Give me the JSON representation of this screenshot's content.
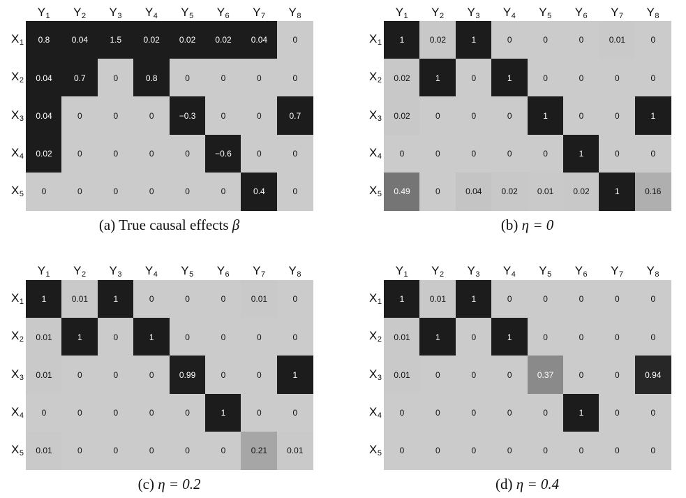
{
  "chart_data": [
    {
      "type": "heatmap",
      "panel_label": "(a)",
      "caption_text": "True causal effects",
      "caption_math": "β",
      "columns": [
        "Y1",
        "Y2",
        "Y3",
        "Y4",
        "Y5",
        "Y6",
        "Y7",
        "Y8"
      ],
      "rows": [
        "X1",
        "X2",
        "X3",
        "X4",
        "X5"
      ],
      "values": [
        [
          "0.8",
          "0.04",
          "1.5",
          "0.02",
          "0.02",
          "0.02",
          "0.04",
          "0"
        ],
        [
          "0.04",
          "0.7",
          "0",
          "0.8",
          "0",
          "0",
          "0",
          "0"
        ],
        [
          "0.04",
          "0",
          "0",
          "0",
          "−0.3",
          "0",
          "0",
          "0.7"
        ],
        [
          "0.02",
          "0",
          "0",
          "0",
          "0",
          "−0.6",
          "0",
          "0"
        ],
        [
          "0",
          "0",
          "0",
          "0",
          "0",
          "0",
          "0.4",
          "0"
        ]
      ],
      "fill": [
        [
          1,
          1,
          1,
          1,
          1,
          1,
          1,
          0
        ],
        [
          1,
          1,
          0,
          1,
          0,
          0,
          0,
          0
        ],
        [
          1,
          0,
          0,
          0,
          1,
          0,
          0,
          1
        ],
        [
          1,
          0,
          0,
          0,
          0,
          1,
          0,
          0
        ],
        [
          0,
          0,
          0,
          0,
          0,
          0,
          1,
          0
        ]
      ]
    },
    {
      "type": "heatmap",
      "panel_label": "(b)",
      "caption_text": "",
      "caption_math": "η = 0",
      "columns": [
        "Y1",
        "Y2",
        "Y3",
        "Y4",
        "Y5",
        "Y6",
        "Y7",
        "Y8"
      ],
      "rows": [
        "X1",
        "X2",
        "X3",
        "X4",
        "X5"
      ],
      "values": [
        [
          "1",
          "0.02",
          "1",
          "0",
          "0",
          "0",
          "0.01",
          "0"
        ],
        [
          "0.02",
          "1",
          "0",
          "1",
          "0",
          "0",
          "0",
          "0"
        ],
        [
          "0.02",
          "0",
          "0",
          "0",
          "1",
          "0",
          "0",
          "1"
        ],
        [
          "0",
          "0",
          "0",
          "0",
          "0",
          "1",
          "0",
          "0"
        ],
        [
          "0.49",
          "0",
          "0.04",
          "0.02",
          "0.01",
          "0.02",
          "1",
          "0.16"
        ]
      ],
      "fill": [
        [
          1,
          0.02,
          1,
          0,
          0,
          0,
          0.01,
          0
        ],
        [
          0.02,
          1,
          0,
          1,
          0,
          0,
          0,
          0
        ],
        [
          0.02,
          0,
          0,
          0,
          1,
          0,
          0,
          1
        ],
        [
          0,
          0,
          0,
          0,
          0,
          1,
          0,
          0
        ],
        [
          0.49,
          0,
          0.04,
          0.02,
          0.01,
          0.02,
          1,
          0.16
        ]
      ]
    },
    {
      "type": "heatmap",
      "panel_label": "(c)",
      "caption_text": "",
      "caption_math": "η = 0.2",
      "columns": [
        "Y1",
        "Y2",
        "Y3",
        "Y4",
        "Y5",
        "Y6",
        "Y7",
        "Y8"
      ],
      "rows": [
        "X1",
        "X2",
        "X3",
        "X4",
        "X5"
      ],
      "values": [
        [
          "1",
          "0.01",
          "1",
          "0",
          "0",
          "0",
          "0.01",
          "0"
        ],
        [
          "0.01",
          "1",
          "0",
          "1",
          "0",
          "0",
          "0",
          "0"
        ],
        [
          "0.01",
          "0",
          "0",
          "0",
          "0.99",
          "0",
          "0",
          "1"
        ],
        [
          "0",
          "0",
          "0",
          "0",
          "0",
          "1",
          "0",
          "0"
        ],
        [
          "0.01",
          "0",
          "0",
          "0",
          "0",
          "0",
          "0.21",
          "0.01"
        ]
      ],
      "fill": [
        [
          1,
          0.01,
          1,
          0,
          0,
          0,
          0.01,
          0
        ],
        [
          0.01,
          1,
          0,
          1,
          0,
          0,
          0,
          0
        ],
        [
          0.01,
          0,
          0,
          0,
          0.99,
          0,
          0,
          1
        ],
        [
          0,
          0,
          0,
          0,
          0,
          1,
          0,
          0
        ],
        [
          0.01,
          0,
          0,
          0,
          0,
          0,
          0.21,
          0.01
        ]
      ]
    },
    {
      "type": "heatmap",
      "panel_label": "(d)",
      "caption_text": "",
      "caption_math": "η = 0.4",
      "columns": [
        "Y1",
        "Y2",
        "Y3",
        "Y4",
        "Y5",
        "Y6",
        "Y7",
        "Y8"
      ],
      "rows": [
        "X1",
        "X2",
        "X3",
        "X4",
        "X5"
      ],
      "values": [
        [
          "1",
          "0.01",
          "1",
          "0",
          "0",
          "0",
          "0",
          "0"
        ],
        [
          "0.01",
          "1",
          "0",
          "1",
          "0",
          "0",
          "0",
          "0"
        ],
        [
          "0.01",
          "0",
          "0",
          "0",
          "0.37",
          "0",
          "0",
          "0.94"
        ],
        [
          "0",
          "0",
          "0",
          "0",
          "0",
          "1",
          "0",
          "0"
        ],
        [
          "0",
          "0",
          "0",
          "0",
          "0",
          "0",
          "0",
          "0"
        ]
      ],
      "fill": [
        [
          1,
          0.01,
          1,
          0,
          0,
          0,
          0,
          0
        ],
        [
          0.01,
          1,
          0,
          1,
          0,
          0,
          0,
          0
        ],
        [
          0.01,
          0,
          0,
          0,
          0.37,
          0,
          0,
          0.94
        ],
        [
          0,
          0,
          0,
          0,
          0,
          1,
          0,
          0
        ],
        [
          0,
          0,
          0,
          0,
          0,
          0,
          0,
          0
        ]
      ]
    }
  ],
  "colors": {
    "zero": "#cbcbcb",
    "one": "#1c1c1c",
    "light_text": "#ffffff",
    "dark_text": "#111111"
  }
}
